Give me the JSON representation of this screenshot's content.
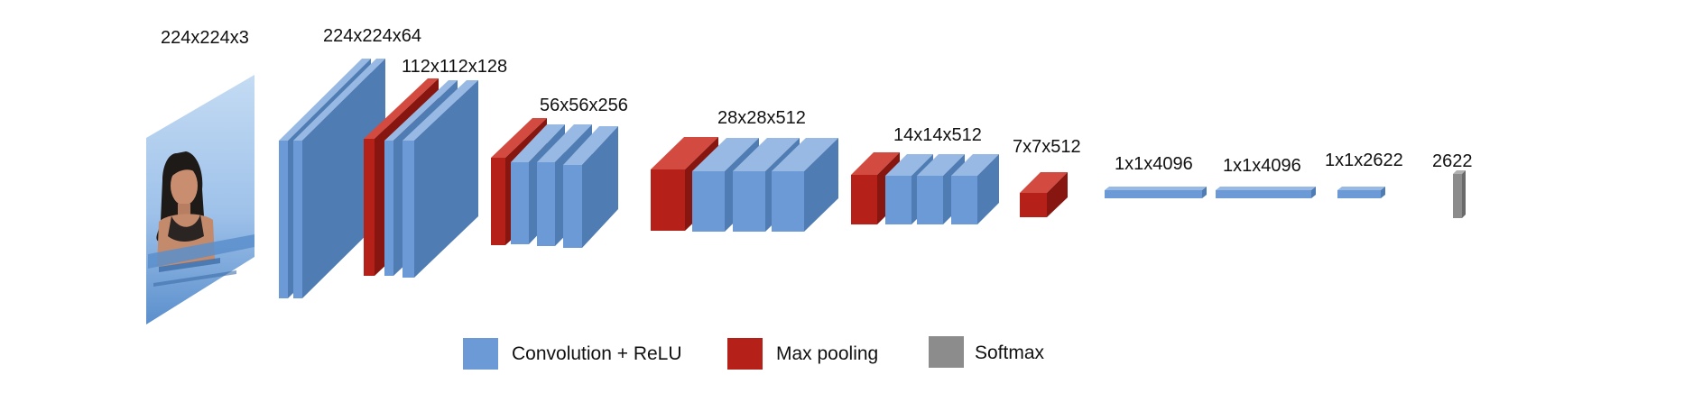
{
  "title": "",
  "colors": {
    "conv": "#6b9ad6",
    "pool": "#b52118",
    "softmax": "#8c8c8c",
    "input_sky": "#a9c9ec",
    "input_water": "#5f94cf"
  },
  "stages": [
    {
      "label": "224x224x3"
    },
    {
      "label": "224x224x64"
    },
    {
      "label": "112x112x128"
    },
    {
      "label": "56x56x256"
    },
    {
      "label": "28x28x512"
    },
    {
      "label": "14x14x512"
    },
    {
      "label": "7x7x512"
    },
    {
      "label": "1x1x4096"
    },
    {
      "label": "1x1x4096"
    },
    {
      "label": "1x1x2622"
    },
    {
      "label": "2622"
    }
  ],
  "legend": [
    {
      "label": "Convolution + ReLU",
      "color": "#6b9ad6"
    },
    {
      "label": "Max pooling",
      "color": "#b52118"
    },
    {
      "label": "Softmax",
      "color": "#8c8c8c"
    }
  ]
}
